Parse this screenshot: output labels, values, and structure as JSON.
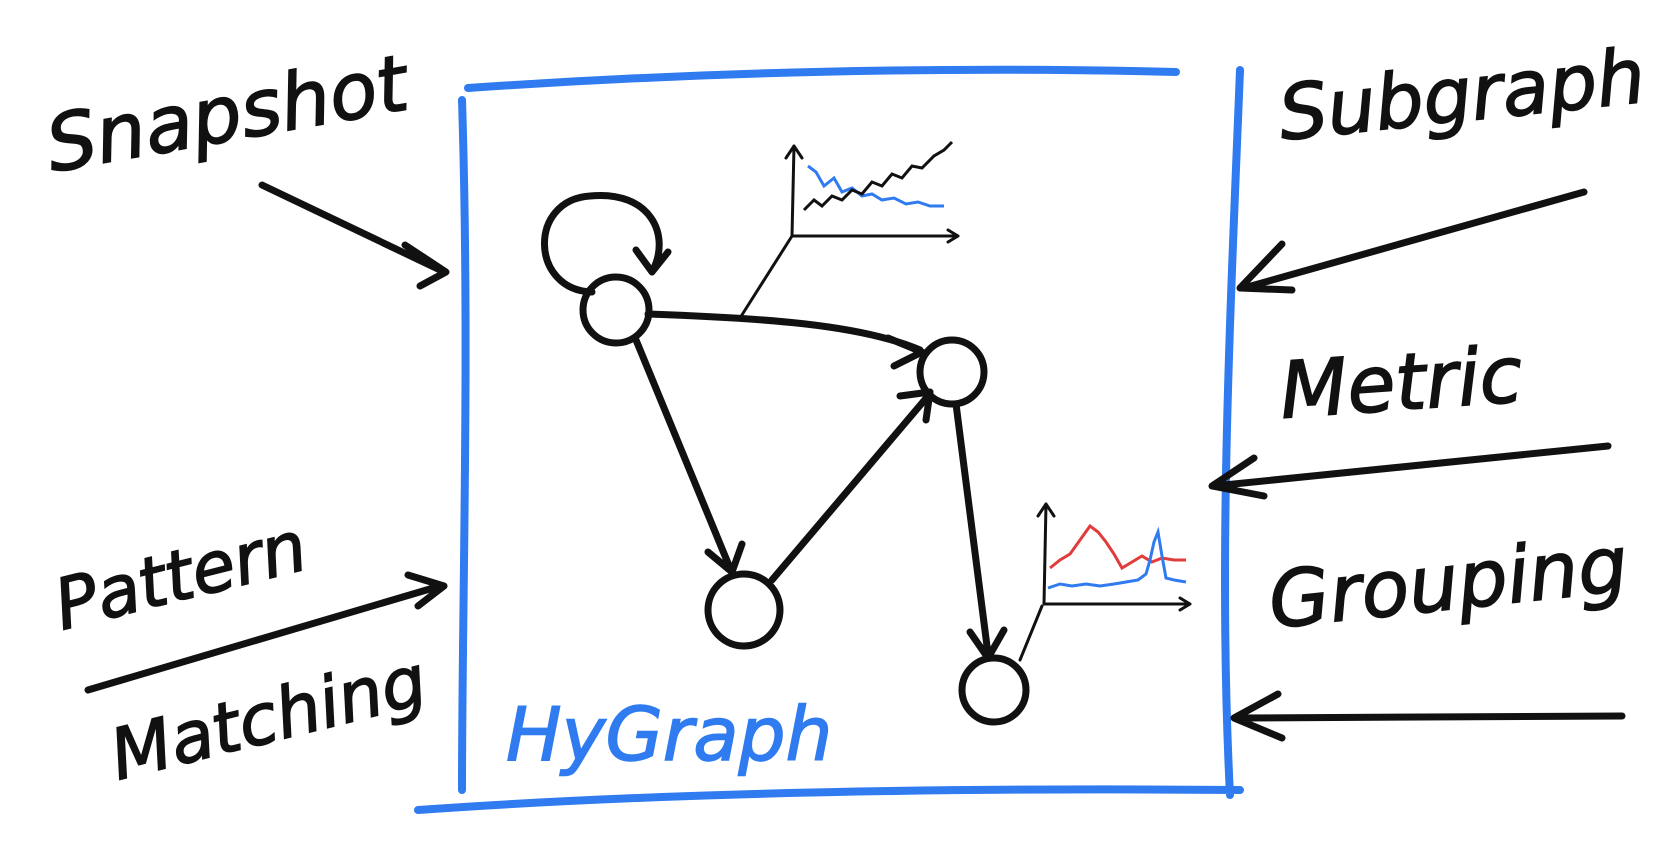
{
  "labels": {
    "snapshot": "Snapshot",
    "pattern": "Pattern",
    "matching": "Matching",
    "subgraph": "Subgraph",
    "metric": "Metric",
    "grouping": "Grouping",
    "center": "HyGraph"
  },
  "colors": {
    "ink": "#111111",
    "frame": "#2f7bef",
    "series_blue": "#2f7bef",
    "series_red": "#e23b3b",
    "series_black": "#111111"
  }
}
